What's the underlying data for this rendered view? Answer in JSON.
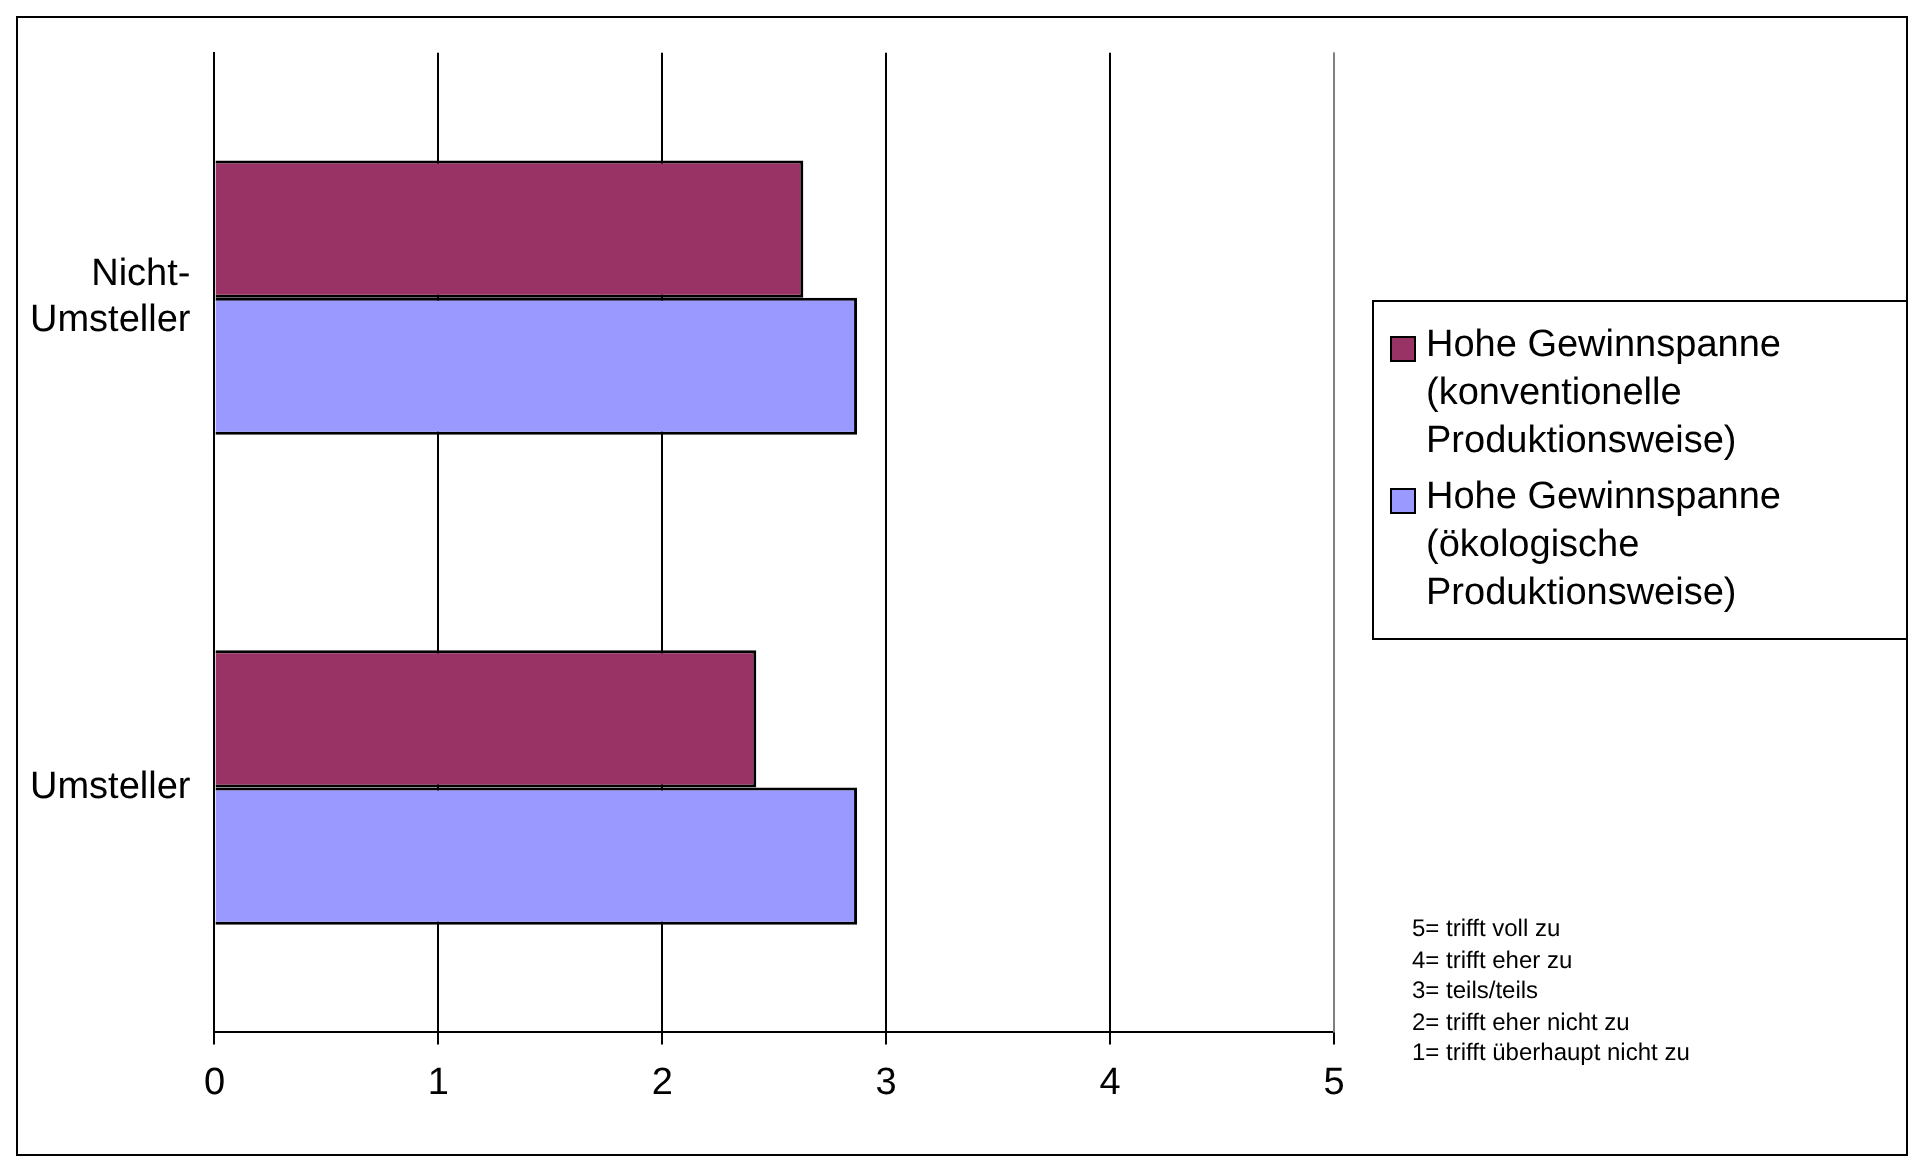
{
  "chart_data": {
    "type": "bar",
    "orientation": "horizontal",
    "categories": [
      "Nicht-Umsteller",
      "Umsteller"
    ],
    "series": [
      {
        "name": "Hohe Gewinnspanne (konventionelle Produktionsweise)",
        "color": "#993366",
        "values": [
          2.63,
          2.42
        ]
      },
      {
        "name": "Hohe Gewinnspanne (ökologische Produktionsweise)",
        "color": "#9999ff",
        "values": [
          2.87,
          2.87
        ]
      }
    ],
    "xlim": [
      0,
      5
    ],
    "xticks": [
      0,
      1,
      2,
      3,
      4,
      5
    ],
    "grid": "x",
    "legend": "right",
    "annotations": [
      "5= trifft voll zu",
      "4= trifft eher zu",
      "3= teils/teils",
      "2= trifft eher nicht zu",
      "1= trifft überhaupt nicht zu"
    ]
  }
}
